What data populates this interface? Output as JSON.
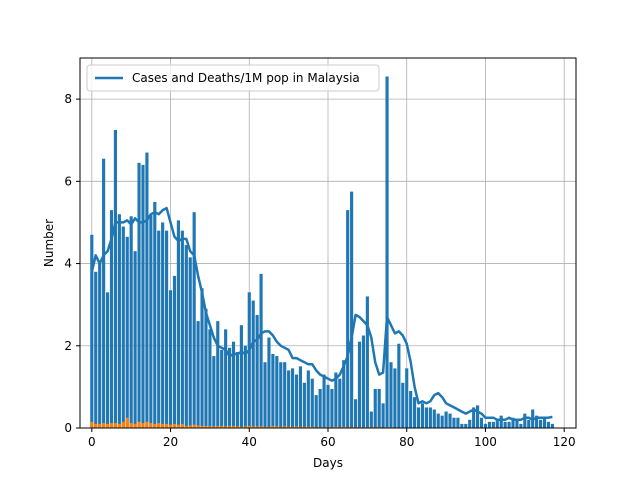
{
  "chart_data": {
    "type": "bar",
    "title": "",
    "xlabel": "Days",
    "ylabel": "Number",
    "xlim": [
      -3,
      123
    ],
    "ylim": [
      0,
      9
    ],
    "xticks": [
      0,
      20,
      40,
      60,
      80,
      100,
      120
    ],
    "yticks": [
      0,
      2,
      4,
      6,
      8
    ],
    "grid": true,
    "legend": {
      "placement": "top-left",
      "label": "Cases and Deaths/1M pop in Malaysia"
    },
    "colors": {
      "bars": "#1f77b4",
      "line": "#1f77b4",
      "deaths": "#ff7f0e",
      "grid": "#b0b0b0"
    },
    "series": [
      {
        "kind": "bar",
        "values": [
          4.7,
          3.8,
          4.0,
          6.55,
          3.3,
          5.3,
          7.25,
          5.2,
          4.9,
          4.65,
          5.15,
          4.3,
          4.35,
          6.4,
          6.7,
          5.2,
          5.5,
          4.8,
          5.0,
          4.8,
          3.35,
          3.7,
          5.05,
          4.8,
          4.45,
          4.15,
          5.25,
          2.6,
          3.4,
          2.9,
          2.4,
          1.75,
          2.6,
          1.9,
          2.4,
          1.95,
          2.1,
          1.85,
          2.5,
          2.0,
          3.3,
          3.1,
          2.75,
          2.1,
          1.6,
          2.2,
          1.8,
          1.75,
          1.6,
          1.6,
          1.4,
          1.45,
          1.3,
          1.5,
          1.1,
          1.4,
          1.2,
          0.8,
          0.95,
          1.3,
          1.05,
          0.95,
          1.35,
          1.2,
          1.65,
          2.1,
          1.1,
          0.7,
          2.1,
          2.25,
          0.5,
          0.4,
          0.95,
          0.95,
          0.6,
          1.4,
          1.6,
          1.45,
          2.05,
          1.1,
          1.45,
          0.9,
          0.75,
          0.5,
          0.6,
          0.5,
          0.5,
          0.45,
          0.35,
          0.3,
          0.4,
          0.35,
          0.25,
          0.25,
          0.1,
          0.1,
          0.2,
          0.5,
          0.55,
          0.25,
          0.1,
          0.15,
          0.15,
          0.2,
          0.3,
          0.15,
          0.15,
          0.25,
          0.2,
          0.1,
          0.35,
          0.2,
          0.45,
          0.3,
          0.2,
          0.25,
          0.15,
          0.1
        ],
        "overrides": {
          "65": 5.3,
          "66": 5.75,
          "75": 8.55,
          "70": 3.2,
          "43": 3.75,
          "12": 6.45
        }
      },
      {
        "kind": "line",
        "name": "Cases and Deaths/1M pop in Malaysia",
        "x": [
          0,
          1,
          2,
          3,
          4,
          5,
          6,
          7,
          8,
          9,
          10,
          11,
          12,
          13,
          14,
          15,
          16,
          17,
          18,
          19,
          20,
          21,
          22,
          23,
          24,
          25,
          26,
          27,
          28,
          29,
          30,
          31,
          32,
          33,
          34,
          35,
          36,
          37,
          38,
          39,
          40,
          41,
          42,
          43,
          44,
          45,
          46,
          47,
          48,
          49,
          50,
          51,
          52,
          53,
          54,
          55,
          56,
          57,
          58,
          59,
          60,
          61,
          62,
          63,
          64,
          65,
          66,
          67,
          68,
          69,
          70,
          71,
          72,
          73,
          74,
          75,
          76,
          77,
          78,
          79,
          80,
          81,
          82,
          83,
          84,
          85,
          86,
          87,
          88,
          89,
          90,
          91,
          92,
          93,
          94,
          95,
          96,
          97,
          98,
          99,
          100,
          101,
          102,
          103,
          104,
          105,
          106,
          107,
          108,
          109,
          110,
          111,
          112,
          113,
          114,
          115,
          116,
          117
        ],
        "values": [
          3.8,
          4.2,
          4.0,
          4.2,
          4.3,
          4.6,
          5.0,
          5.0,
          5.0,
          5.05,
          4.95,
          5.1,
          5.0,
          5.0,
          5.05,
          5.2,
          5.25,
          5.2,
          5.3,
          5.35,
          5.0,
          4.65,
          4.55,
          4.6,
          4.6,
          4.3,
          4.2,
          3.7,
          3.3,
          2.8,
          2.5,
          2.2,
          2.0,
          1.95,
          1.9,
          1.75,
          1.8,
          1.8,
          1.85,
          1.8,
          1.9,
          2.1,
          2.15,
          2.3,
          2.35,
          2.35,
          2.25,
          2.1,
          2.0,
          1.95,
          1.9,
          1.7,
          1.7,
          1.65,
          1.6,
          1.55,
          1.55,
          1.4,
          1.3,
          1.25,
          1.2,
          1.15,
          1.2,
          1.3,
          1.5,
          1.75,
          2.2,
          2.75,
          2.7,
          2.6,
          2.5,
          2.2,
          1.6,
          1.3,
          1.35,
          2.7,
          2.5,
          2.3,
          2.35,
          2.25,
          2.05,
          1.6,
          1.0,
          0.6,
          0.65,
          0.6,
          0.65,
          0.8,
          0.85,
          0.75,
          0.6,
          0.55,
          0.5,
          0.45,
          0.4,
          0.35,
          0.4,
          0.45,
          0.4,
          0.35,
          0.25,
          0.25,
          0.25,
          0.2,
          0.2,
          0.2,
          0.25,
          0.2,
          0.2,
          0.2,
          0.25,
          0.25,
          0.2,
          0.25,
          0.25,
          0.25,
          0.25,
          0.27
        ]
      },
      {
        "kind": "bar",
        "name": "deaths",
        "values": [
          0.15,
          0.1,
          0.1,
          0.12,
          0.1,
          0.12,
          0.12,
          0.1,
          0.15,
          0.25,
          0.12,
          0.1,
          0.15,
          0.12,
          0.15,
          0.12,
          0.1,
          0.12,
          0.1,
          0.1,
          0.08,
          0.1,
          0.08,
          0.1,
          0.05,
          0.06,
          0.08,
          0.06,
          0.05,
          0.05,
          0.04,
          0.04,
          0.05,
          0.05,
          0.04,
          0.05,
          0.05,
          0.04,
          0.03,
          0.04,
          0.05,
          0.04,
          0.04,
          0.04,
          0.03,
          0.03,
          0.05,
          0.04,
          0.03,
          0.04,
          0.03,
          0.03,
          0.04,
          0.03,
          0.03,
          0.03,
          0.03,
          0.02,
          0.02,
          0.02,
          0.02,
          0.02,
          0.03,
          0.02,
          0.03,
          0.02,
          0.02,
          0.02,
          0.02,
          0.02,
          0.02,
          0.02,
          0.02,
          0.02,
          0.01,
          0.02,
          0.02,
          0.01,
          0.01,
          0.01,
          0.01,
          0.01,
          0.01,
          0.01,
          0.01,
          0.01,
          0.0,
          0.01,
          0.0,
          0.0,
          0.01,
          0.0,
          0.0,
          0.0,
          0.0,
          0.0,
          0.0,
          0.0,
          0.0,
          0.0,
          0.0,
          0.0,
          0.0,
          0.0,
          0.0,
          0.0,
          0.0,
          0.0,
          0.0,
          0.0,
          0.0,
          0.0,
          0.0,
          0.0,
          0.0,
          0.0,
          0.0,
          0.0
        ]
      }
    ]
  }
}
